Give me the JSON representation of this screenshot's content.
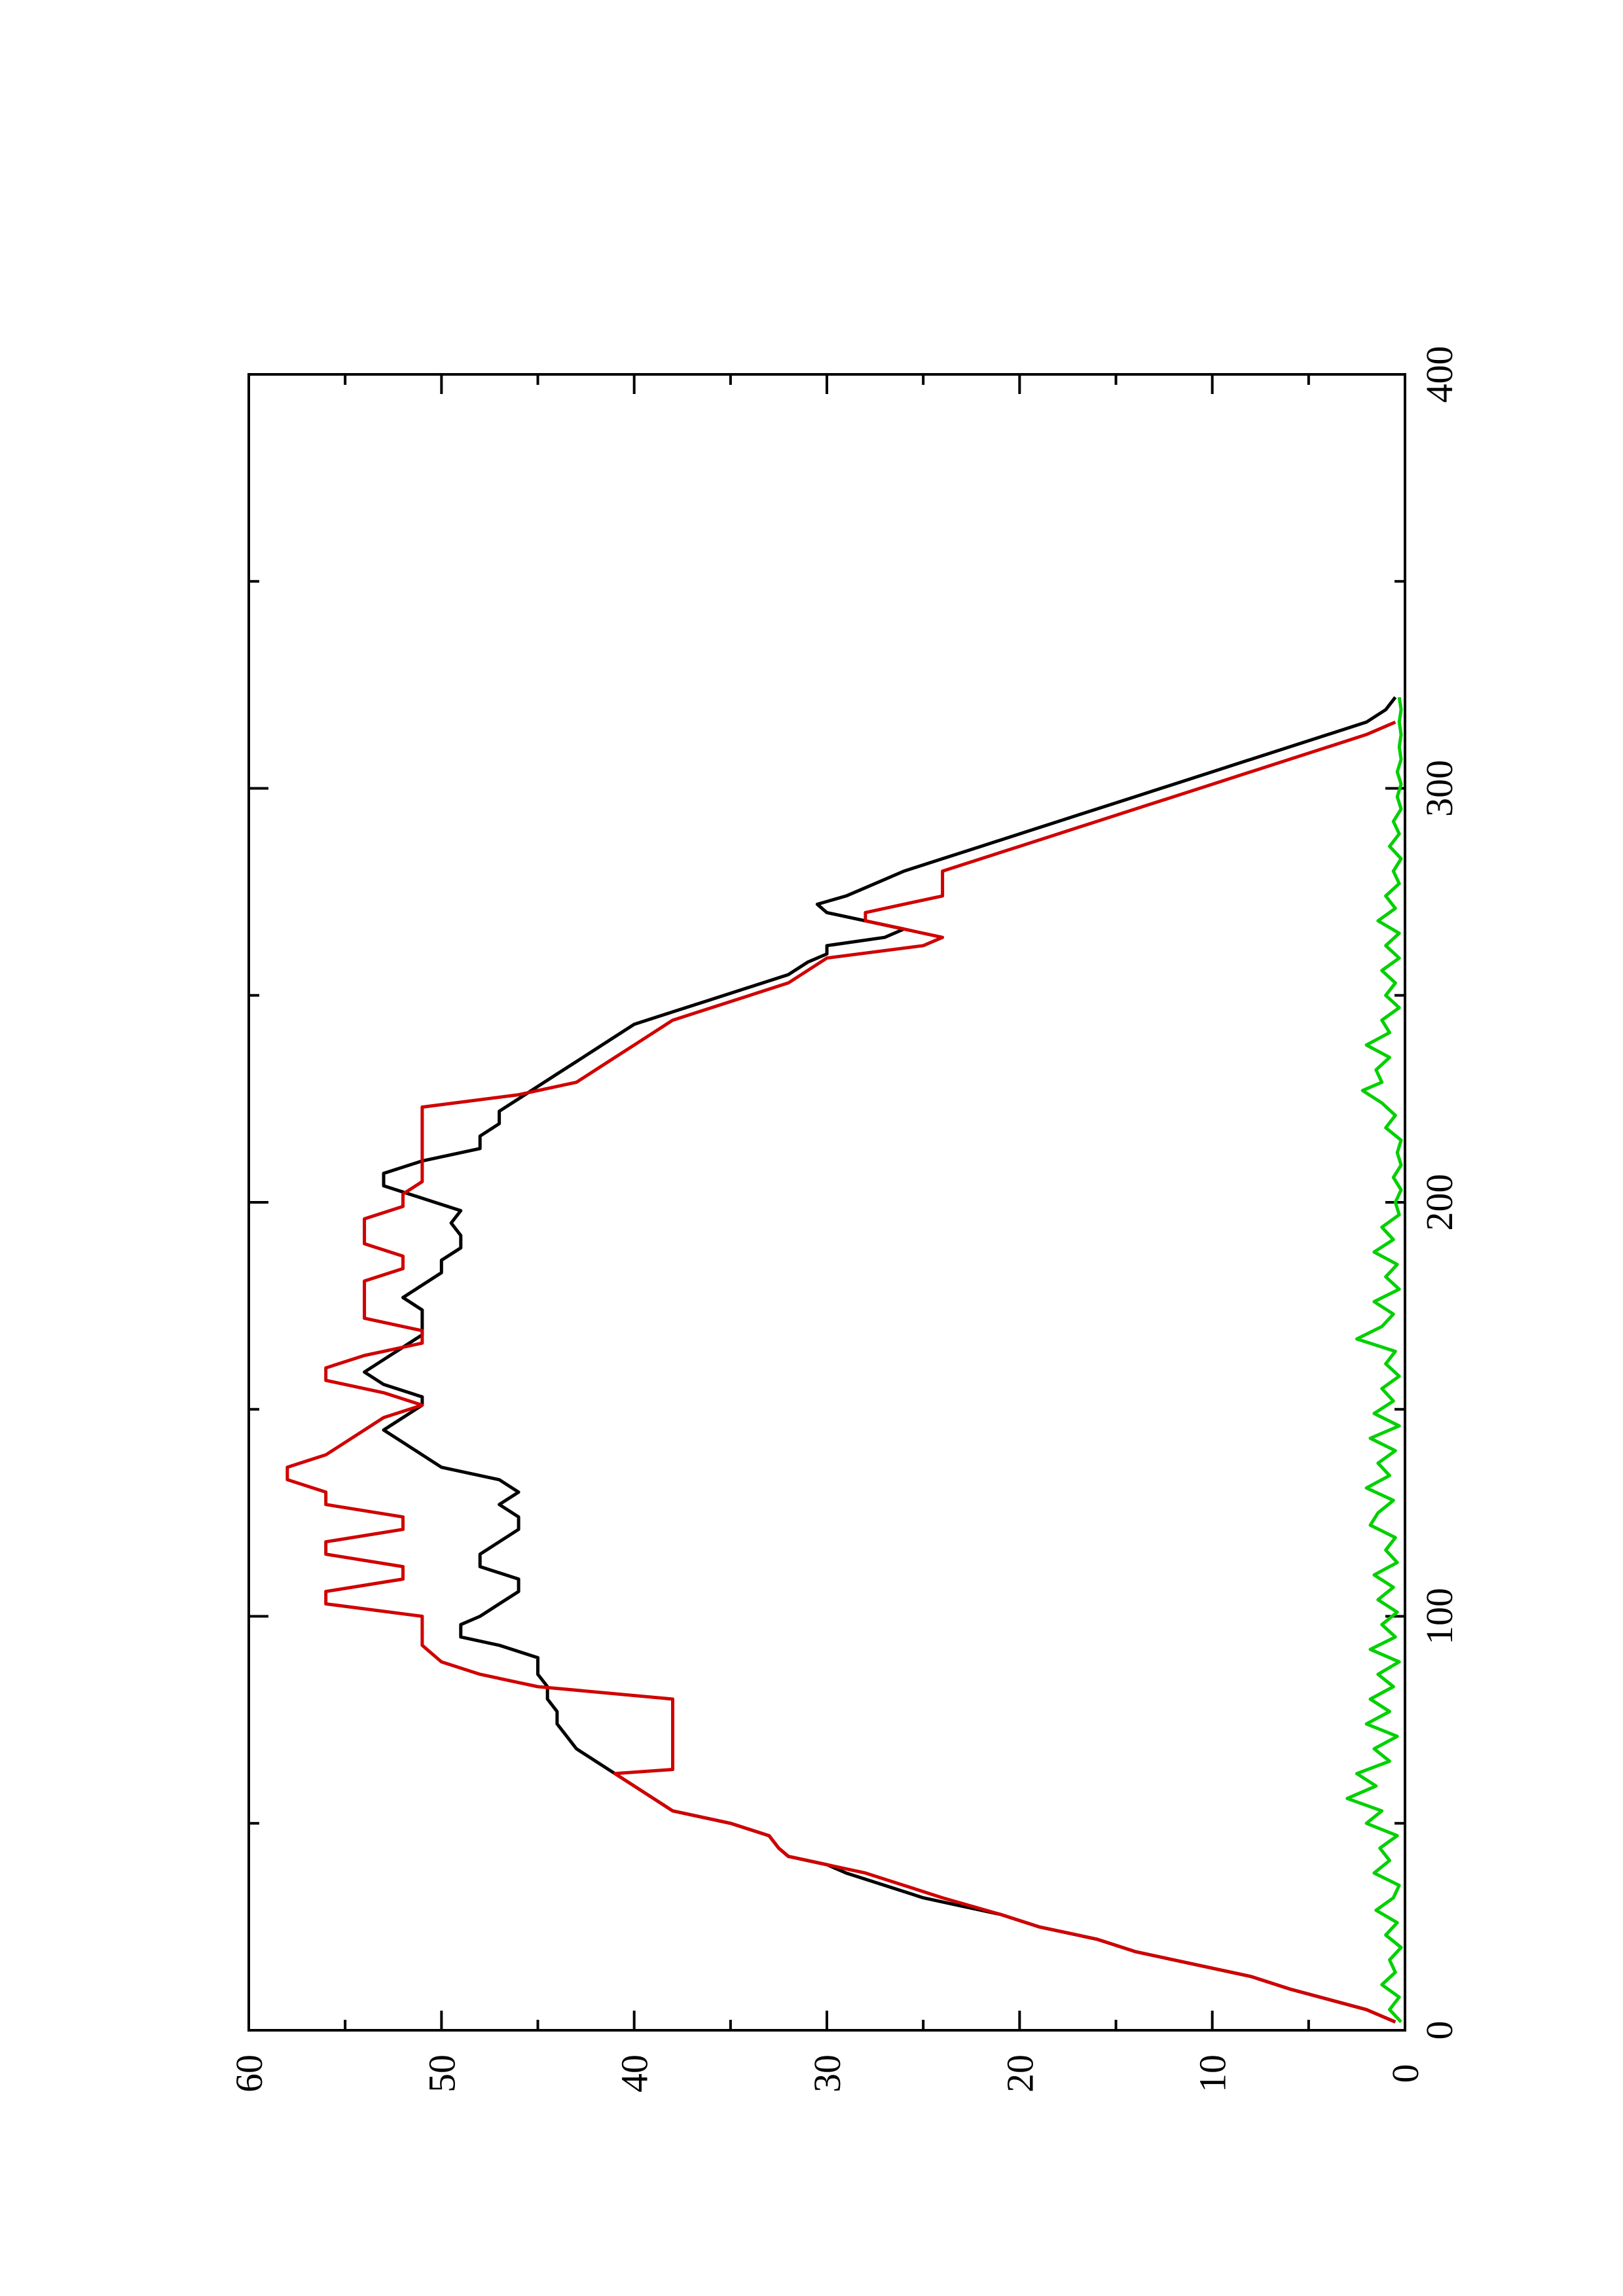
{
  "chart_data": {
    "type": "line",
    "orientation": "rotated-90-ccw",
    "title": "",
    "xlabel": "",
    "ylabel": "",
    "xlim": [
      0,
      400
    ],
    "ylim": [
      0,
      60
    ],
    "x_ticks": [
      0,
      100,
      200,
      300,
      400
    ],
    "x_minor_ticks": [
      50,
      150,
      250,
      350
    ],
    "y_ticks": [
      0,
      10,
      20,
      30,
      40,
      50,
      60
    ],
    "y_minor_ticks": [
      5,
      15,
      25,
      35,
      45,
      55
    ],
    "grid": false,
    "legend": "none",
    "series": [
      {
        "color": "#000000",
        "points": [
          [
            2,
            0.5
          ],
          [
            5,
            2
          ],
          [
            10,
            6
          ],
          [
            13,
            8
          ],
          [
            16,
            11
          ],
          [
            19,
            14
          ],
          [
            22,
            16
          ],
          [
            25,
            19
          ],
          [
            28,
            21
          ],
          [
            30,
            23
          ],
          [
            32,
            25
          ],
          [
            35,
            27
          ],
          [
            38,
            29
          ],
          [
            40,
            30
          ],
          [
            42,
            32
          ],
          [
            44,
            32.5
          ],
          [
            47,
            33
          ],
          [
            50,
            35
          ],
          [
            53,
            38
          ],
          [
            56,
            39
          ],
          [
            59,
            40
          ],
          [
            62,
            41
          ],
          [
            65,
            42
          ],
          [
            68,
            43
          ],
          [
            71,
            43.5
          ],
          [
            74,
            44
          ],
          [
            77,
            44
          ],
          [
            80,
            44.5
          ],
          [
            83,
            44.5
          ],
          [
            86,
            45
          ],
          [
            90,
            45
          ],
          [
            93,
            47
          ],
          [
            95,
            49
          ],
          [
            98,
            49
          ],
          [
            100,
            48
          ],
          [
            103,
            47
          ],
          [
            106,
            46
          ],
          [
            109,
            46
          ],
          [
            112,
            48
          ],
          [
            115,
            48
          ],
          [
            118,
            47
          ],
          [
            121,
            46
          ],
          [
            124,
            46
          ],
          [
            127,
            47
          ],
          [
            130,
            46
          ],
          [
            133,
            47
          ],
          [
            136,
            50
          ],
          [
            139,
            51
          ],
          [
            142,
            52
          ],
          [
            145,
            53
          ],
          [
            148,
            52
          ],
          [
            151,
            51
          ],
          [
            153,
            51
          ],
          [
            156,
            53
          ],
          [
            159,
            54
          ],
          [
            162,
            53
          ],
          [
            165,
            52
          ],
          [
            168,
            51
          ],
          [
            171,
            51
          ],
          [
            174,
            51
          ],
          [
            177,
            52
          ],
          [
            180,
            51
          ],
          [
            183,
            50
          ],
          [
            186,
            50
          ],
          [
            189,
            49
          ],
          [
            192,
            49
          ],
          [
            195,
            49.5
          ],
          [
            198,
            49
          ],
          [
            201,
            51
          ],
          [
            204,
            53
          ],
          [
            207,
            53
          ],
          [
            210,
            51
          ],
          [
            213,
            48
          ],
          [
            216,
            48
          ],
          [
            219,
            47
          ],
          [
            222,
            47
          ],
          [
            225,
            46
          ],
          [
            228,
            45
          ],
          [
            231,
            44
          ],
          [
            234,
            43
          ],
          [
            237,
            42
          ],
          [
            240,
            41
          ],
          [
            243,
            40
          ],
          [
            246,
            38
          ],
          [
            249,
            36
          ],
          [
            252,
            34
          ],
          [
            255,
            32
          ],
          [
            258,
            31
          ],
          [
            260,
            30
          ],
          [
            262,
            30
          ],
          [
            264,
            27
          ],
          [
            266,
            26
          ],
          [
            268,
            28
          ],
          [
            270,
            30
          ],
          [
            272,
            30.5
          ],
          [
            274,
            29
          ],
          [
            276,
            28
          ],
          [
            278,
            27
          ],
          [
            280,
            26
          ],
          [
            283,
            24
          ],
          [
            286,
            22
          ],
          [
            289,
            20
          ],
          [
            292,
            18
          ],
          [
            295,
            16
          ],
          [
            298,
            14
          ],
          [
            301,
            12
          ],
          [
            304,
            10
          ],
          [
            307,
            8
          ],
          [
            310,
            6
          ],
          [
            313,
            4
          ],
          [
            316,
            2
          ],
          [
            319,
            1
          ],
          [
            322,
            0.5
          ]
        ]
      },
      {
        "color": "#d00000",
        "points": [
          [
            2,
            0.5
          ],
          [
            5,
            2
          ],
          [
            10,
            6
          ],
          [
            13,
            8
          ],
          [
            16,
            11
          ],
          [
            19,
            14
          ],
          [
            22,
            16
          ],
          [
            25,
            19
          ],
          [
            28,
            21
          ],
          [
            32,
            24
          ],
          [
            35,
            26
          ],
          [
            38,
            28
          ],
          [
            40,
            30
          ],
          [
            42,
            32
          ],
          [
            44,
            32.5
          ],
          [
            47,
            33
          ],
          [
            50,
            35
          ],
          [
            53,
            38
          ],
          [
            56,
            39
          ],
          [
            59,
            40
          ],
          [
            62,
            41
          ],
          [
            63,
            38
          ],
          [
            80,
            38
          ],
          [
            83,
            45
          ],
          [
            86,
            48
          ],
          [
            89,
            50
          ],
          [
            93,
            51
          ],
          [
            100,
            51
          ],
          [
            103,
            56
          ],
          [
            106,
            56
          ],
          [
            109,
            52
          ],
          [
            112,
            52
          ],
          [
            115,
            56
          ],
          [
            118,
            56
          ],
          [
            121,
            52
          ],
          [
            124,
            52
          ],
          [
            127,
            56
          ],
          [
            130,
            56
          ],
          [
            133,
            58
          ],
          [
            136,
            58
          ],
          [
            139,
            56
          ],
          [
            142,
            55
          ],
          [
            145,
            54
          ],
          [
            148,
            53
          ],
          [
            151,
            51
          ],
          [
            154,
            53
          ],
          [
            157,
            56
          ],
          [
            160,
            56
          ],
          [
            163,
            54
          ],
          [
            166,
            51
          ],
          [
            169,
            51
          ],
          [
            172,
            54
          ],
          [
            175,
            54
          ],
          [
            178,
            54
          ],
          [
            181,
            54
          ],
          [
            184,
            52
          ],
          [
            187,
            52
          ],
          [
            190,
            54
          ],
          [
            193,
            54
          ],
          [
            196,
            54
          ],
          [
            199,
            52
          ],
          [
            202,
            52
          ],
          [
            205,
            51
          ],
          [
            208,
            51
          ],
          [
            211,
            51
          ],
          [
            214,
            51
          ],
          [
            217,
            51
          ],
          [
            220,
            51
          ],
          [
            223,
            51
          ],
          [
            226,
            46
          ],
          [
            229,
            43
          ],
          [
            232,
            42
          ],
          [
            235,
            41
          ],
          [
            238,
            40
          ],
          [
            241,
            39
          ],
          [
            244,
            38
          ],
          [
            247,
            36
          ],
          [
            250,
            34
          ],
          [
            253,
            32
          ],
          [
            256,
            31
          ],
          [
            259,
            30
          ],
          [
            262,
            25
          ],
          [
            264,
            24
          ],
          [
            266,
            26
          ],
          [
            268,
            28
          ],
          [
            270,
            28
          ],
          [
            272,
            26
          ],
          [
            274,
            24
          ],
          [
            276,
            24
          ],
          [
            278,
            24
          ],
          [
            280,
            24
          ],
          [
            283,
            22
          ],
          [
            286,
            20
          ],
          [
            289,
            18
          ],
          [
            292,
            16
          ],
          [
            295,
            14
          ],
          [
            298,
            12
          ],
          [
            301,
            10
          ],
          [
            304,
            8
          ],
          [
            307,
            6
          ],
          [
            310,
            4
          ],
          [
            313,
            2
          ],
          [
            316,
            0.5
          ]
        ]
      },
      {
        "color": "#00d000",
        "points": [
          [
            2,
            0.2
          ],
          [
            5,
            0.8
          ],
          [
            8,
            0.3
          ],
          [
            11,
            1.2
          ],
          [
            14,
            0.5
          ],
          [
            17,
            0.8
          ],
          [
            20,
            0.2
          ],
          [
            23,
            1.0
          ],
          [
            26,
            0.4
          ],
          [
            29,
            1.5
          ],
          [
            32,
            0.6
          ],
          [
            35,
            0.3
          ],
          [
            38,
            1.6
          ],
          [
            41,
            0.8
          ],
          [
            44,
            1.3
          ],
          [
            47,
            0.4
          ],
          [
            50,
            2.0
          ],
          [
            53,
            1.2
          ],
          [
            56,
            3.0
          ],
          [
            59,
            1.5
          ],
          [
            62,
            2.5
          ],
          [
            65,
            0.8
          ],
          [
            68,
            1.6
          ],
          [
            71,
            0.4
          ],
          [
            74,
            2.0
          ],
          [
            77,
            0.8
          ],
          [
            80,
            1.8
          ],
          [
            83,
            0.6
          ],
          [
            86,
            1.4
          ],
          [
            89,
            0.3
          ],
          [
            92,
            1.8
          ],
          [
            95,
            0.5
          ],
          [
            98,
            1.2
          ],
          [
            101,
            0.4
          ],
          [
            104,
            1.4
          ],
          [
            107,
            0.6
          ],
          [
            110,
            1.6
          ],
          [
            113,
            0.4
          ],
          [
            116,
            1.0
          ],
          [
            119,
            0.5
          ],
          [
            122,
            1.8
          ],
          [
            125,
            1.4
          ],
          [
            128,
            0.6
          ],
          [
            131,
            2.0
          ],
          [
            134,
            0.8
          ],
          [
            137,
            1.4
          ],
          [
            140,
            0.5
          ],
          [
            143,
            1.8
          ],
          [
            146,
            0.3
          ],
          [
            149,
            1.6
          ],
          [
            152,
            0.6
          ],
          [
            155,
            1.2
          ],
          [
            158,
            0.3
          ],
          [
            161,
            1.0
          ],
          [
            164,
            0.5
          ],
          [
            167,
            2.5
          ],
          [
            170,
            1.2
          ],
          [
            173,
            0.6
          ],
          [
            176,
            1.6
          ],
          [
            179,
            0.3
          ],
          [
            182,
            1.0
          ],
          [
            185,
            0.4
          ],
          [
            188,
            1.6
          ],
          [
            191,
            0.6
          ],
          [
            194,
            1.2
          ],
          [
            197,
            0.3
          ],
          [
            200,
            0.5
          ],
          [
            203,
            0.2
          ],
          [
            206,
            0.6
          ],
          [
            209,
            0.2
          ],
          [
            212,
            0.4
          ],
          [
            215,
            0.2
          ],
          [
            218,
            1.0
          ],
          [
            221,
            0.5
          ],
          [
            224,
            1.2
          ],
          [
            227,
            2.2
          ],
          [
            229,
            1.2
          ],
          [
            232,
            1.5
          ],
          [
            235,
            0.8
          ],
          [
            238,
            2.0
          ],
          [
            241,
            0.8
          ],
          [
            244,
            1.2
          ],
          [
            247,
            0.3
          ],
          [
            250,
            1.0
          ],
          [
            253,
            0.5
          ],
          [
            256,
            1.2
          ],
          [
            259,
            0.3
          ],
          [
            262,
            1.0
          ],
          [
            265,
            0.3
          ],
          [
            268,
            1.4
          ],
          [
            271,
            0.5
          ],
          [
            274,
            1.0
          ],
          [
            277,
            0.3
          ],
          [
            280,
            0.6
          ],
          [
            283,
            0.2
          ],
          [
            286,
            0.8
          ],
          [
            289,
            0.3
          ],
          [
            292,
            0.6
          ],
          [
            295,
            0.2
          ],
          [
            298,
            0.4
          ],
          [
            301,
            0.2
          ],
          [
            304,
            0.4
          ],
          [
            307,
            0.2
          ],
          [
            310,
            0.3
          ],
          [
            313,
            0.2
          ],
          [
            316,
            0.3
          ],
          [
            319,
            0.2
          ],
          [
            322,
            0.3
          ]
        ]
      }
    ]
  }
}
